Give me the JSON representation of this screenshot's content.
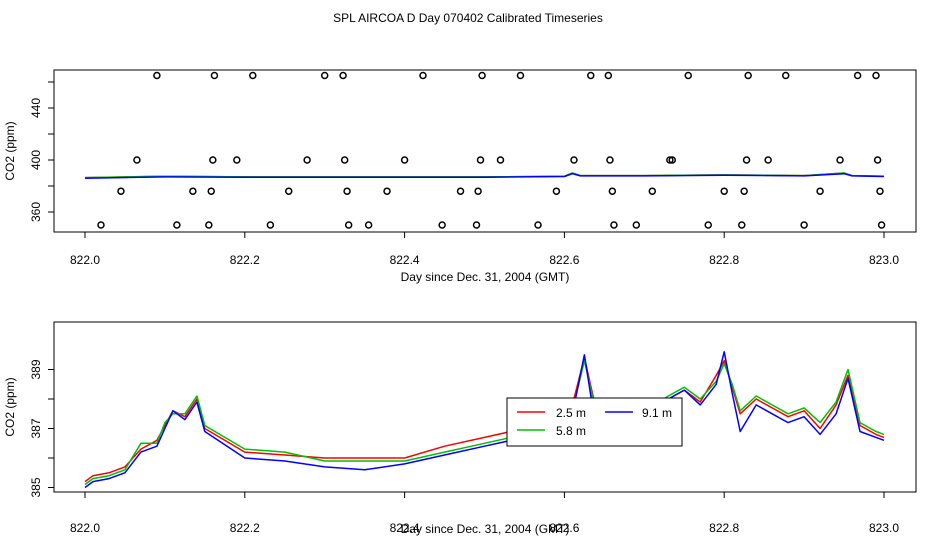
{
  "title": "SPL AIRCOA D  Day 070402  Calibrated Timeseries",
  "colors": {
    "red": "#ff0000",
    "green": "#00c000",
    "blue": "#0000ff",
    "axis": "#000000"
  },
  "chart_data": [
    {
      "type": "line",
      "xlabel": "Day since Dec. 31, 2004 (GMT)",
      "ylabel": "CO2 (ppm)",
      "xlim": [
        822.0,
        823.0
      ],
      "ylim": [
        345,
        465
      ],
      "xticks": [
        "822.0",
        "822.2",
        "822.4",
        "822.6",
        "822.8",
        "823.0"
      ],
      "yticks": [
        "360",
        "400",
        "440"
      ],
      "yticks_unlabeled": [
        380,
        420
      ],
      "series": [
        {
          "color": "#ff0000",
          "x": [
            822.0,
            822.1,
            822.2,
            822.3,
            822.4,
            822.5,
            822.6,
            822.61,
            822.62,
            822.7,
            822.8,
            822.9,
            822.95,
            822.96,
            823.0
          ],
          "y": [
            386.5,
            387.5,
            387,
            387,
            387,
            387,
            387.5,
            390,
            388,
            388,
            388.5,
            388,
            390,
            388,
            387.5
          ]
        },
        {
          "color": "#00c000",
          "x": [
            822.0,
            822.1,
            822.2,
            822.3,
            822.4,
            822.5,
            822.6,
            822.61,
            822.62,
            822.7,
            822.8,
            822.9,
            822.95,
            822.96,
            823.0
          ],
          "y": [
            386.5,
            387.5,
            387,
            387,
            387,
            387,
            387.5,
            390,
            388,
            388,
            388.5,
            388,
            390,
            388,
            387.5
          ]
        },
        {
          "color": "#0000ff",
          "x": [
            822.0,
            822.1,
            822.2,
            822.3,
            822.4,
            822.5,
            822.6,
            822.61,
            822.62,
            822.7,
            822.8,
            822.9,
            822.95,
            822.96,
            823.0
          ],
          "y": [
            386,
            387,
            386.8,
            386.8,
            386.8,
            386.8,
            387.3,
            389.5,
            387.8,
            387.8,
            388.3,
            387.8,
            389.5,
            387.8,
            387.3
          ]
        }
      ],
      "points": {
        "x": [
          822.02,
          822.045,
          822.065,
          822.09,
          822.115,
          822.135,
          822.155,
          822.158,
          822.16,
          822.162,
          822.19,
          822.21,
          822.232,
          822.255,
          822.278,
          822.3,
          822.323,
          822.325,
          822.328,
          822.33,
          822.355,
          822.378,
          822.4,
          822.423,
          822.447,
          822.47,
          822.49,
          822.492,
          822.495,
          822.497,
          822.52,
          822.545,
          822.567,
          822.59,
          822.612,
          822.633,
          822.655,
          822.657,
          822.66,
          822.662,
          822.69,
          822.71,
          822.732,
          822.735,
          822.755,
          822.78,
          822.8,
          822.822,
          822.825,
          822.828,
          822.83,
          822.855,
          822.877,
          822.9,
          822.92,
          822.945,
          822.967,
          822.99,
          822.992,
          822.995,
          822.997
        ],
        "y": [
          350,
          376,
          400,
          465,
          350,
          376,
          350,
          376,
          400,
          465,
          400,
          465,
          350,
          376,
          400,
          465,
          465,
          400,
          376,
          350,
          350,
          376,
          400,
          465,
          350,
          376,
          350,
          376,
          400,
          465,
          400,
          465,
          350,
          376,
          400,
          465,
          465,
          400,
          376,
          350,
          350,
          376,
          400,
          400,
          465,
          350,
          376,
          350,
          376,
          400,
          465,
          400,
          465,
          350,
          376,
          400,
          465,
          465,
          400,
          376,
          350
        ]
      }
    },
    {
      "type": "line",
      "xlabel": "Day since Dec. 31, 2004 (GMT)",
      "ylabel": "CO2 (ppm)",
      "xlim": [
        822.0,
        823.0
      ],
      "ylim": [
        384.8,
        390.2
      ],
      "xticks": [
        "822.0",
        "822.2",
        "822.4",
        "822.6",
        "822.8",
        "823.0"
      ],
      "yticks": [
        "385",
        "387",
        "389"
      ],
      "yticks_unlabeled": [
        386,
        388
      ],
      "legend": {
        "entries": [
          "2.5 m",
          "5.8 m",
          "9.1 m"
        ],
        "colors": [
          "#ff0000",
          "#00c000",
          "#0000ff"
        ]
      },
      "series": [
        {
          "name": "2.5 m",
          "color": "#ff0000",
          "x": [
            822.0,
            822.01,
            822.03,
            822.05,
            822.07,
            822.09,
            822.1,
            822.11,
            822.125,
            822.14,
            822.15,
            822.2,
            822.25,
            822.3,
            822.35,
            822.4,
            822.45,
            822.5,
            822.55,
            822.6,
            822.61,
            822.625,
            822.64,
            822.655,
            822.68,
            822.7,
            822.73,
            822.75,
            822.77,
            822.79,
            822.8,
            822.81,
            822.82,
            822.84,
            822.86,
            822.88,
            822.9,
            822.92,
            822.94,
            822.955,
            822.97,
            822.99,
            823.0
          ],
          "y": [
            385.2,
            385.4,
            385.5,
            385.7,
            386.3,
            386.6,
            387.1,
            387.6,
            387.4,
            388.0,
            387.0,
            386.2,
            386.1,
            386.0,
            386.0,
            386.0,
            386.4,
            386.7,
            387.0,
            387.0,
            387.8,
            389.4,
            387.6,
            387.8,
            387.4,
            387.5,
            388.0,
            388.3,
            387.9,
            388.8,
            389.3,
            388.4,
            387.5,
            388.0,
            387.7,
            387.4,
            387.6,
            387.0,
            387.8,
            388.8,
            387.1,
            386.8,
            386.7
          ]
        },
        {
          "name": "5.8 m",
          "color": "#00c000",
          "x": [
            822.0,
            822.01,
            822.03,
            822.05,
            822.07,
            822.09,
            822.1,
            822.11,
            822.125,
            822.14,
            822.15,
            822.2,
            822.25,
            822.3,
            822.35,
            822.4,
            822.45,
            822.5,
            822.55,
            822.6,
            822.61,
            822.625,
            822.64,
            822.655,
            822.68,
            822.7,
            822.73,
            822.75,
            822.77,
            822.79,
            822.8,
            822.81,
            822.82,
            822.84,
            822.86,
            822.88,
            822.9,
            822.92,
            822.94,
            822.955,
            822.97,
            822.99,
            823.0
          ],
          "y": [
            385.1,
            385.3,
            385.4,
            385.6,
            386.5,
            386.5,
            387.2,
            387.5,
            387.5,
            388.1,
            387.1,
            386.3,
            386.2,
            385.9,
            385.9,
            385.9,
            386.2,
            386.5,
            386.8,
            386.9,
            387.6,
            389.3,
            387.5,
            387.8,
            387.5,
            387.6,
            388.1,
            388.4,
            388.0,
            388.6,
            389.2,
            388.5,
            387.6,
            388.1,
            387.8,
            387.5,
            387.7,
            387.2,
            387.9,
            389.0,
            387.2,
            386.9,
            386.8
          ]
        },
        {
          "name": "9.1 m",
          "color": "#0000ff",
          "x": [
            822.0,
            822.01,
            822.03,
            822.05,
            822.07,
            822.09,
            822.1,
            822.11,
            822.125,
            822.14,
            822.15,
            822.2,
            822.25,
            822.3,
            822.35,
            822.4,
            822.45,
            822.5,
            822.55,
            822.6,
            822.61,
            822.625,
            822.64,
            822.655,
            822.68,
            822.7,
            822.73,
            822.75,
            822.77,
            822.79,
            822.8,
            822.81,
            822.82,
            822.84,
            822.86,
            822.88,
            822.9,
            822.92,
            822.94,
            822.955,
            822.97,
            822.99,
            823.0
          ],
          "y": [
            385.0,
            385.2,
            385.3,
            385.5,
            386.2,
            386.4,
            387.0,
            387.6,
            387.3,
            387.9,
            386.9,
            386.0,
            385.9,
            385.7,
            385.6,
            385.8,
            386.1,
            386.4,
            386.7,
            386.8,
            387.5,
            389.5,
            386.9,
            387.8,
            387.4,
            387.6,
            388.0,
            388.3,
            387.8,
            388.5,
            389.6,
            388.2,
            386.9,
            387.8,
            387.5,
            387.2,
            387.4,
            386.8,
            387.5,
            388.7,
            386.9,
            386.7,
            386.6
          ]
        }
      ]
    }
  ]
}
